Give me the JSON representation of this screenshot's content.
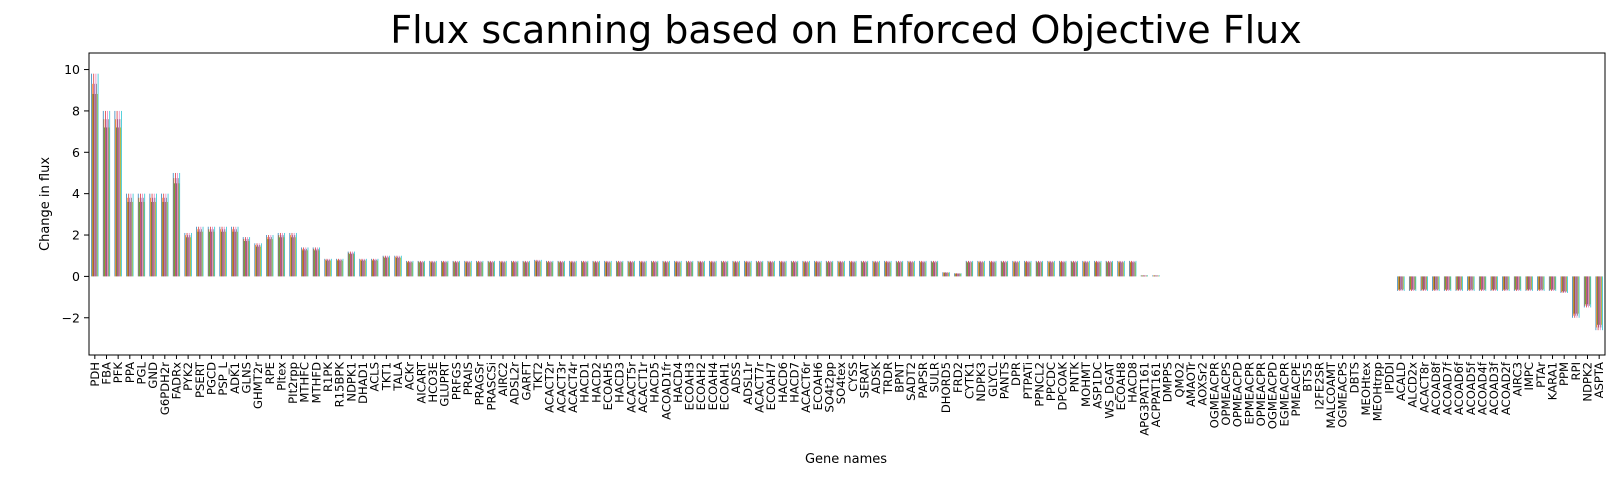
{
  "chart_data": {
    "type": "bar",
    "title": "Flux scanning based on Enforced Objective Flux",
    "xlabel": "Gene names",
    "ylabel": "Change in flux",
    "ylim": [
      -3.8,
      10.8
    ],
    "yticks": [
      -2,
      0,
      2,
      4,
      6,
      8,
      10
    ],
    "ytick_labels": [
      "−2",
      "0",
      "2",
      "4",
      "6",
      "8",
      "10"
    ],
    "grid": false,
    "legend": "none",
    "bars_per_category": 10,
    "colors": [
      "#1f77b4",
      "#ff7f0e",
      "#2ca02c",
      "#d62728",
      "#9467bd",
      "#8c564b",
      "#e377c2",
      "#7f7f7f",
      "#bcbd22",
      "#17becf"
    ],
    "categories": [
      "PDH",
      "FBA",
      "PFK",
      "PPA",
      "PGL",
      "GND",
      "G6PDH2r",
      "FADRx",
      "PYK2",
      "PSERT",
      "PGCD",
      "PSP_L",
      "ADK1",
      "GLNS",
      "GHMT2r",
      "RPE",
      "PItex",
      "PIt2rpp",
      "MTHFC",
      "MTHFD",
      "R1PK",
      "R15BPK",
      "NDPK1",
      "DHAD1",
      "ACLS",
      "TKT1",
      "TALA",
      "ACKr",
      "AICART",
      "HCO3E",
      "GLUPRT",
      "PRFGS",
      "PRAIS",
      "PRAGSr",
      "PRASCSi",
      "AIRC2",
      "ADSL2r",
      "GARFT",
      "TKT2",
      "ACACT2r",
      "ACACT3r",
      "ACACT4r",
      "HACD1",
      "HACD2",
      "ECOAH5",
      "HACD3",
      "ACACT5r",
      "ACACT1r",
      "HACD5",
      "ACOAD1fr",
      "HACD4",
      "ECOAH3",
      "ECOAH2",
      "ECOAH4",
      "ECOAH1",
      "ADSS",
      "ADSL1r",
      "ACACT7r",
      "ECOAH7",
      "HACD6",
      "HACD7",
      "ACACT6r",
      "ECOAH6",
      "SO4t2pp",
      "SO4tex",
      "CYSS",
      "SERAT",
      "ADSK",
      "TRDR",
      "BPNT",
      "SADT2",
      "PAPSR",
      "SULR",
      "DHORD5",
      "FRD2",
      "CYTK1",
      "NDPK3",
      "GLYCL",
      "PANTS",
      "DPR",
      "PTPATi",
      "PPNCL2",
      "PPCDC",
      "DPCOAK",
      "PNTK",
      "MOHMT",
      "ASP1DC",
      "WS_DGAT",
      "ECOAH8",
      "HACD8",
      "APG3PAT161",
      "ACPPAT161",
      "DMPPS",
      "QMO2",
      "AMAOTr",
      "AOXSr2",
      "OGMEACPR",
      "OPMEACPS",
      "OPMEACPD",
      "EPMEACPR",
      "OPMEACPR",
      "OGMEACPD",
      "EGMEACPR",
      "PMEACPE",
      "BTS5",
      "I2FE2SR",
      "MALCOAMT",
      "OGMEACPS",
      "DBTS",
      "MEOHtex",
      "MEOHtrpp",
      "IPDDI",
      "ACALD",
      "ALCD2x",
      "ACACT8r",
      "ACOAD8f",
      "ACOAD7f",
      "ACOAD6f",
      "ACOAD5f",
      "ACOAD4f",
      "ACOAD3f",
      "ACOAD2f",
      "AIRC3",
      "IMPC",
      "PTAr",
      "KARA1",
      "PPM",
      "RPI",
      "NDPK2",
      "ASPTA"
    ],
    "values": [
      9.8,
      8.0,
      8.0,
      4.0,
      4.0,
      4.0,
      4.0,
      5.0,
      2.1,
      2.4,
      2.4,
      2.4,
      2.4,
      1.9,
      1.6,
      2.0,
      2.1,
      2.1,
      1.4,
      1.4,
      0.85,
      0.85,
      1.2,
      0.85,
      0.85,
      1.0,
      1.0,
      0.75,
      0.75,
      0.75,
      0.75,
      0.75,
      0.75,
      0.75,
      0.75,
      0.75,
      0.75,
      0.75,
      0.8,
      0.75,
      0.75,
      0.75,
      0.75,
      0.75,
      0.75,
      0.75,
      0.75,
      0.75,
      0.75,
      0.75,
      0.75,
      0.75,
      0.75,
      0.75,
      0.75,
      0.75,
      0.75,
      0.75,
      0.75,
      0.75,
      0.75,
      0.75,
      0.75,
      0.75,
      0.75,
      0.75,
      0.75,
      0.75,
      0.75,
      0.75,
      0.75,
      0.75,
      0.75,
      0.2,
      0.15,
      0.75,
      0.75,
      0.75,
      0.75,
      0.75,
      0.75,
      0.75,
      0.75,
      0.75,
      0.75,
      0.75,
      0.75,
      0.75,
      0.75,
      0.75,
      0.05,
      0.05,
      0,
      0,
      0,
      0,
      0,
      0,
      0,
      0,
      0,
      0,
      0,
      0,
      0,
      0,
      0,
      0,
      0,
      0,
      0,
      0,
      -0.7,
      -0.7,
      -0.7,
      -0.7,
      -0.7,
      -0.7,
      -0.7,
      -0.7,
      -0.7,
      -0.7,
      -0.7,
      -0.7,
      -0.7,
      -0.7,
      -0.8,
      -2.0,
      -1.5,
      -2.6
    ]
  }
}
